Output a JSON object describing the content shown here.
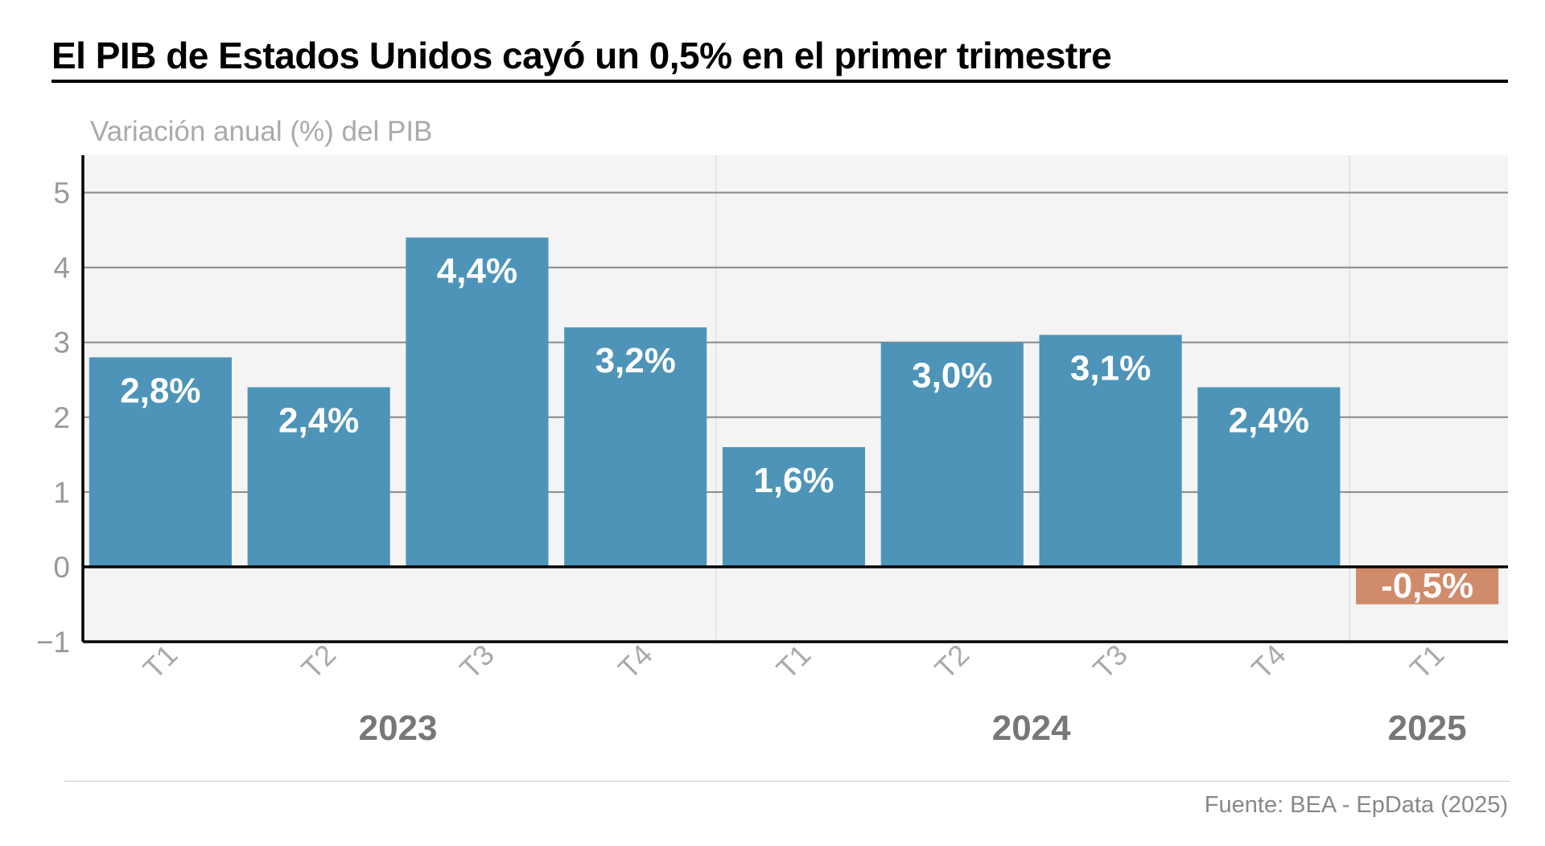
{
  "title": "El PIB de Estados Unidos cayó un 0,5% en el primer trimestre",
  "source": "Fuente: BEA - EpData (2025)",
  "colors": {
    "positive": "#4d94b8",
    "negative": "#d08b6b",
    "plot_bg": "#f4f4f4"
  },
  "chart_data": {
    "type": "bar",
    "title": "El PIB de Estados Unidos cayó un 0,5% en el primer trimestre",
    "ylabel": "Variación anual (%) del PIB",
    "xlabel": "",
    "categories": [
      "T1",
      "T2",
      "T3",
      "T4",
      "T1",
      "T2",
      "T3",
      "T4",
      "T1"
    ],
    "groups": [
      {
        "label": "2023",
        "start": 0,
        "end": 3
      },
      {
        "label": "2024",
        "start": 4,
        "end": 7
      },
      {
        "label": "2025",
        "start": 8,
        "end": 8
      }
    ],
    "values": [
      2.8,
      2.4,
      4.4,
      3.2,
      1.6,
      3.0,
      3.1,
      2.4,
      -0.5
    ],
    "data_labels": [
      "2,8%",
      "2,4%",
      "4,4%",
      "3,2%",
      "1,6%",
      "3,0%",
      "3,1%",
      "2,4%",
      "-0,5%"
    ],
    "ylim": [
      -1,
      5.5
    ],
    "yticks": [
      -1,
      0,
      1,
      2,
      3,
      4,
      5
    ],
    "ytick_labels": [
      "−1",
      "0",
      "1",
      "2",
      "3",
      "4",
      "5"
    ],
    "grid": true,
    "legend": "none"
  }
}
